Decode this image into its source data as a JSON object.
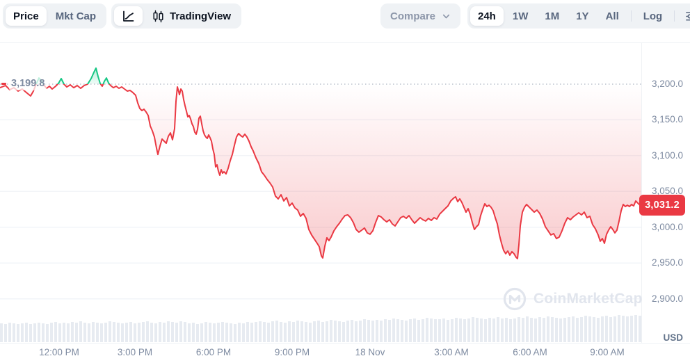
{
  "toolbar": {
    "price": "Price",
    "mkt_cap": "Mkt Cap",
    "tradingview": "TradingView",
    "compare": "Compare",
    "tf_24h": "24h",
    "tf_1w": "1W",
    "tf_1m": "1M",
    "tf_1y": "1Y",
    "tf_all": "All",
    "log": "Log"
  },
  "watermark": {
    "text": "CoinMarketCap"
  },
  "axis": {
    "currency": "USD"
  },
  "chart_data": {
    "type": "line",
    "timeframe": "24h",
    "ylim": [
      2839.6,
      3257.1
    ],
    "open_price": {
      "label": "3,199.8",
      "value": 3199.8
    },
    "current_price": {
      "label": "3,031.2",
      "value": 3031.2
    },
    "y_ticks": [
      {
        "label": "3,200.0",
        "value": 3200,
        "grid": false
      },
      {
        "label": "3,150.0",
        "value": 3150,
        "grid": true
      },
      {
        "label": "3,100.0",
        "value": 3100,
        "grid": true
      },
      {
        "label": "3,050.0",
        "value": 3050,
        "grid": true
      },
      {
        "label": "3,000.0",
        "value": 3000,
        "grid": true
      },
      {
        "label": "2,950.0",
        "value": 2950,
        "grid": true
      },
      {
        "label": "2,900.0",
        "value": 2900,
        "grid": true
      }
    ],
    "x_ticks": [
      {
        "label": "12:00 PM",
        "x": 85
      },
      {
        "label": "3:00 PM",
        "x": 194
      },
      {
        "label": "6:00 PM",
        "x": 307
      },
      {
        "label": "9:00 PM",
        "x": 420
      },
      {
        "label": "18 Nov",
        "x": 532
      },
      {
        "label": "3:00 AM",
        "x": 649
      },
      {
        "label": "6:00 AM",
        "x": 762
      },
      {
        "label": "9:00 AM",
        "x": 873
      }
    ],
    "x_unit": "px of 922px plot width",
    "series": [
      [
        0,
        3194.9
      ],
      [
        8,
        3197.9
      ],
      [
        14,
        3192.0
      ],
      [
        20,
        3194.9
      ],
      [
        26,
        3190.1
      ],
      [
        32,
        3193.0
      ],
      [
        38,
        3188.1
      ],
      [
        44,
        3183.3
      ],
      [
        48,
        3190.1
      ],
      [
        52,
        3199.8
      ],
      [
        56,
        3208.5
      ],
      [
        60,
        3203.7
      ],
      [
        63,
        3198.8
      ],
      [
        67,
        3194.0
      ],
      [
        71,
        3196.9
      ],
      [
        75,
        3193.0
      ],
      [
        80,
        3196.9
      ],
      [
        84,
        3200.8
      ],
      [
        88,
        3207.6
      ],
      [
        92,
        3199.8
      ],
      [
        96,
        3195.9
      ],
      [
        101,
        3198.8
      ],
      [
        106,
        3194.9
      ],
      [
        111,
        3197.9
      ],
      [
        116,
        3194.0
      ],
      [
        121,
        3197.9
      ],
      [
        126,
        3199.8
      ],
      [
        131,
        3207.6
      ],
      [
        135,
        3216.3
      ],
      [
        138,
        3222.1
      ],
      [
        141,
        3210.5
      ],
      [
        144,
        3200.8
      ],
      [
        147,
        3196.9
      ],
      [
        150,
        3203.7
      ],
      [
        153,
        3208.5
      ],
      [
        156,
        3201.7
      ],
      [
        159,
        3197.9
      ],
      [
        163,
        3194.9
      ],
      [
        167,
        3196.9
      ],
      [
        171,
        3194.0
      ],
      [
        175,
        3195.9
      ],
      [
        179,
        3193.0
      ],
      [
        183,
        3190.1
      ],
      [
        187,
        3191.1
      ],
      [
        191,
        3188.1
      ],
      [
        195,
        3184.3
      ],
      [
        198,
        3173.6
      ],
      [
        201,
        3165.8
      ],
      [
        204,
        3162.9
      ],
      [
        207,
        3164.8
      ],
      [
        210,
        3161.0
      ],
      [
        213,
        3156.1
      ],
      [
        216,
        3141.5
      ],
      [
        219,
        3134.7
      ],
      [
        222,
        3126.0
      ],
      [
        225,
        3110.5
      ],
      [
        227,
        3101.7
      ],
      [
        230,
        3113.4
      ],
      [
        233,
        3123.1
      ],
      [
        236,
        3120.2
      ],
      [
        239,
        3117.3
      ],
      [
        242,
        3127.0
      ],
      [
        245,
        3131.8
      ],
      [
        248,
        3122.1
      ],
      [
        251,
        3137.7
      ],
      [
        253,
        3175.5
      ],
      [
        255,
        3195.9
      ],
      [
        257,
        3189.1
      ],
      [
        258,
        3185.2
      ],
      [
        260,
        3193.0
      ],
      [
        262,
        3190.1
      ],
      [
        264,
        3178.4
      ],
      [
        266,
        3169.7
      ],
      [
        268,
        3162.0
      ],
      [
        270,
        3154.2
      ],
      [
        272,
        3156.1
      ],
      [
        274,
        3151.3
      ],
      [
        276,
        3144.5
      ],
      [
        278,
        3140.6
      ],
      [
        280,
        3132.8
      ],
      [
        282,
        3129.9
      ],
      [
        284,
        3136.7
      ],
      [
        286,
        3152.2
      ],
      [
        288,
        3155.1
      ],
      [
        290,
        3144.5
      ],
      [
        292,
        3134.7
      ],
      [
        294,
        3128.9
      ],
      [
        296,
        3126.0
      ],
      [
        298,
        3124.1
      ],
      [
        300,
        3128.9
      ],
      [
        302,
        3125.0
      ],
      [
        304,
        3120.2
      ],
      [
        306,
        3109.5
      ],
      [
        308,
        3101.7
      ],
      [
        310,
        3084.3
      ],
      [
        312,
        3087.2
      ],
      [
        314,
        3078.4
      ],
      [
        316,
        3072.6
      ],
      [
        318,
        3080.4
      ],
      [
        320,
        3075.5
      ],
      [
        322,
        3077.5
      ],
      [
        325,
        3074.6
      ],
      [
        328,
        3082.3
      ],
      [
        331,
        3093.0
      ],
      [
        334,
        3101.7
      ],
      [
        337,
        3114.4
      ],
      [
        340,
        3126.0
      ],
      [
        343,
        3130.9
      ],
      [
        346,
        3128.0
      ],
      [
        349,
        3126.0
      ],
      [
        352,
        3129.9
      ],
      [
        355,
        3126.0
      ],
      [
        358,
        3120.2
      ],
      [
        361,
        3112.4
      ],
      [
        364,
        3106.6
      ],
      [
        368,
        3096.9
      ],
      [
        372,
        3089.1
      ],
      [
        376,
        3077.5
      ],
      [
        380,
        3072.6
      ],
      [
        384,
        3066.8
      ],
      [
        388,
        3061.9
      ],
      [
        392,
        3056.1
      ],
      [
        396,
        3043.5
      ],
      [
        400,
        3039.6
      ],
      [
        404,
        3045.4
      ],
      [
        408,
        3036.7
      ],
      [
        412,
        3041.5
      ],
      [
        416,
        3029.8
      ],
      [
        420,
        3033.7
      ],
      [
        424,
        3027.0
      ],
      [
        428,
        3024.0
      ],
      [
        432,
        3015.3
      ],
      [
        436,
        3019.2
      ],
      [
        440,
        3012.4
      ],
      [
        444,
        2996.9
      ],
      [
        448,
        2989.2
      ],
      [
        452,
        2983.4
      ],
      [
        456,
        2977.6
      ],
      [
        459,
        2972.7
      ],
      [
        462,
        2960.1
      ],
      [
        464,
        2957.2
      ],
      [
        467,
        2973.6
      ],
      [
        470,
        2985.3
      ],
      [
        473,
        2981.3
      ],
      [
        476,
        2986.3
      ],
      [
        480,
        2994.9
      ],
      [
        484,
        3000.8
      ],
      [
        488,
        3005.6
      ],
      [
        492,
        3011.5
      ],
      [
        496,
        3016.3
      ],
      [
        500,
        3017.3
      ],
      [
        504,
        3013.4
      ],
      [
        508,
        3006.6
      ],
      [
        512,
        2996.9
      ],
      [
        516,
        2993.1
      ],
      [
        520,
        2995.9
      ],
      [
        524,
        2998.9
      ],
      [
        528,
        2992.1
      ],
      [
        532,
        2990.2
      ],
      [
        536,
        2995.0
      ],
      [
        540,
        3006.6
      ],
      [
        544,
        3016.3
      ],
      [
        548,
        3014.4
      ],
      [
        552,
        3010.5
      ],
      [
        556,
        3007.5
      ],
      [
        560,
        3010.5
      ],
      [
        564,
        3004.7
      ],
      [
        568,
        3001.8
      ],
      [
        572,
        3007.6
      ],
      [
        576,
        3013.4
      ],
      [
        580,
        3015.3
      ],
      [
        584,
        3012.4
      ],
      [
        588,
        3016.3
      ],
      [
        592,
        3010.5
      ],
      [
        596,
        3005.6
      ],
      [
        600,
        3009.5
      ],
      [
        604,
        3013.4
      ],
      [
        608,
        3010.5
      ],
      [
        612,
        3008.6
      ],
      [
        616,
        3012.4
      ],
      [
        620,
        3009.5
      ],
      [
        624,
        3013.4
      ],
      [
        628,
        3011.5
      ],
      [
        632,
        3018.2
      ],
      [
        636,
        3022.1
      ],
      [
        640,
        3026.0
      ],
      [
        644,
        3029.8
      ],
      [
        648,
        3036.7
      ],
      [
        652,
        3040.5
      ],
      [
        655,
        3042.5
      ],
      [
        658,
        3035.7
      ],
      [
        661,
        3039.6
      ],
      [
        664,
        3034.7
      ],
      [
        667,
        3027.9
      ],
      [
        670,
        3021.1
      ],
      [
        673,
        3026.0
      ],
      [
        676,
        3018.2
      ],
      [
        679,
        3006.6
      ],
      [
        682,
        2996.9
      ],
      [
        685,
        3000.8
      ],
      [
        688,
        3003.7
      ],
      [
        691,
        3016.3
      ],
      [
        694,
        3025.0
      ],
      [
        697,
        3032.8
      ],
      [
        700,
        3028.9
      ],
      [
        703,
        3030.8
      ],
      [
        706,
        3027.9
      ],
      [
        709,
        3023.1
      ],
      [
        712,
        3013.4
      ],
      [
        715,
        3004.7
      ],
      [
        718,
        2989.2
      ],
      [
        721,
        2977.6
      ],
      [
        724,
        2967.8
      ],
      [
        727,
        2963.0
      ],
      [
        730,
        2966.8
      ],
      [
        733,
        2961.1
      ],
      [
        736,
        2965.9
      ],
      [
        739,
        2963.0
      ],
      [
        742,
        2958.1
      ],
      [
        744,
        2956.2
      ],
      [
        746,
        2975.6
      ],
      [
        748,
        3001.8
      ],
      [
        751,
        3021.1
      ],
      [
        754,
        3027.9
      ],
      [
        757,
        3031.8
      ],
      [
        760,
        3028.9
      ],
      [
        764,
        3025.0
      ],
      [
        768,
        3021.1
      ],
      [
        772,
        3024.0
      ],
      [
        776,
        3019.2
      ],
      [
        780,
        3011.5
      ],
      [
        784,
        3000.8
      ],
      [
        788,
        2995.0
      ],
      [
        792,
        2989.2
      ],
      [
        796,
        2991.1
      ],
      [
        800,
        2984.2
      ],
      [
        804,
        2986.3
      ],
      [
        808,
        2995.0
      ],
      [
        812,
        3005.6
      ],
      [
        816,
        3013.4
      ],
      [
        820,
        3010.5
      ],
      [
        824,
        3014.4
      ],
      [
        828,
        3017.3
      ],
      [
        832,
        3020.2
      ],
      [
        836,
        3017.3
      ],
      [
        840,
        3021.1
      ],
      [
        844,
        3013.4
      ],
      [
        848,
        3015.3
      ],
      [
        852,
        3003.7
      ],
      [
        856,
        2997.8
      ],
      [
        860,
        2989.2
      ],
      [
        863,
        2980.5
      ],
      [
        866,
        2984.3
      ],
      [
        869,
        2977.6
      ],
      [
        872,
        2990.2
      ],
      [
        875,
        2996.0
      ],
      [
        878,
        3000.8
      ],
      [
        881,
        2996.9
      ],
      [
        884,
        2992.1
      ],
      [
        887,
        2996.0
      ],
      [
        890,
        3008.6
      ],
      [
        893,
        3023.1
      ],
      [
        896,
        3031.8
      ],
      [
        899,
        3028.9
      ],
      [
        902,
        3030.8
      ],
      [
        905,
        3028.9
      ],
      [
        908,
        3031.8
      ],
      [
        911,
        3029.8
      ],
      [
        914,
        3036.7
      ],
      [
        917,
        3033.7
      ],
      [
        920,
        3030.8
      ],
      [
        922,
        3031.2
      ]
    ],
    "volume_bars": [
      27,
      26,
      28,
      27,
      26,
      27,
      28,
      26,
      27,
      28,
      27,
      26,
      28,
      29,
      27,
      28,
      27,
      29,
      28,
      30,
      28,
      27,
      29,
      28,
      27,
      28,
      30,
      29,
      28,
      27,
      28,
      29,
      27,
      28,
      29,
      30,
      28,
      27,
      29,
      28,
      30,
      29,
      28,
      30,
      29,
      27,
      28,
      26,
      27,
      29,
      28,
      27,
      28,
      29,
      28,
      27,
      26,
      28,
      27,
      29,
      28,
      29,
      30,
      29,
      28,
      30,
      31,
      29,
      28,
      30,
      29,
      31,
      30,
      29,
      28,
      30,
      31,
      29,
      30,
      32,
      31,
      30,
      29,
      31,
      32,
      30,
      31,
      33,
      32,
      31,
      32,
      31,
      33,
      32,
      34,
      33,
      32,
      31,
      33,
      34,
      32,
      33,
      35,
      34,
      33,
      33,
      34,
      32,
      33,
      35,
      34,
      33,
      34,
      36,
      35,
      34,
      33,
      35,
      34,
      36,
      34,
      35,
      33,
      34,
      36,
      35,
      37,
      35,
      34,
      36,
      35,
      37,
      36,
      35,
      34,
      35,
      36,
      37,
      35,
      36,
      38,
      37,
      36,
      35,
      37,
      38,
      36,
      37,
      39,
      38,
      37,
      38,
      39,
      38
    ],
    "colors": {
      "line_down": "#ea3943",
      "line_up": "#16c784",
      "grid": "#f2f4f8",
      "baseline_dots": "#9aa3b5",
      "volume": "#e7ebf1",
      "badge_bg": "#ea3943"
    }
  }
}
